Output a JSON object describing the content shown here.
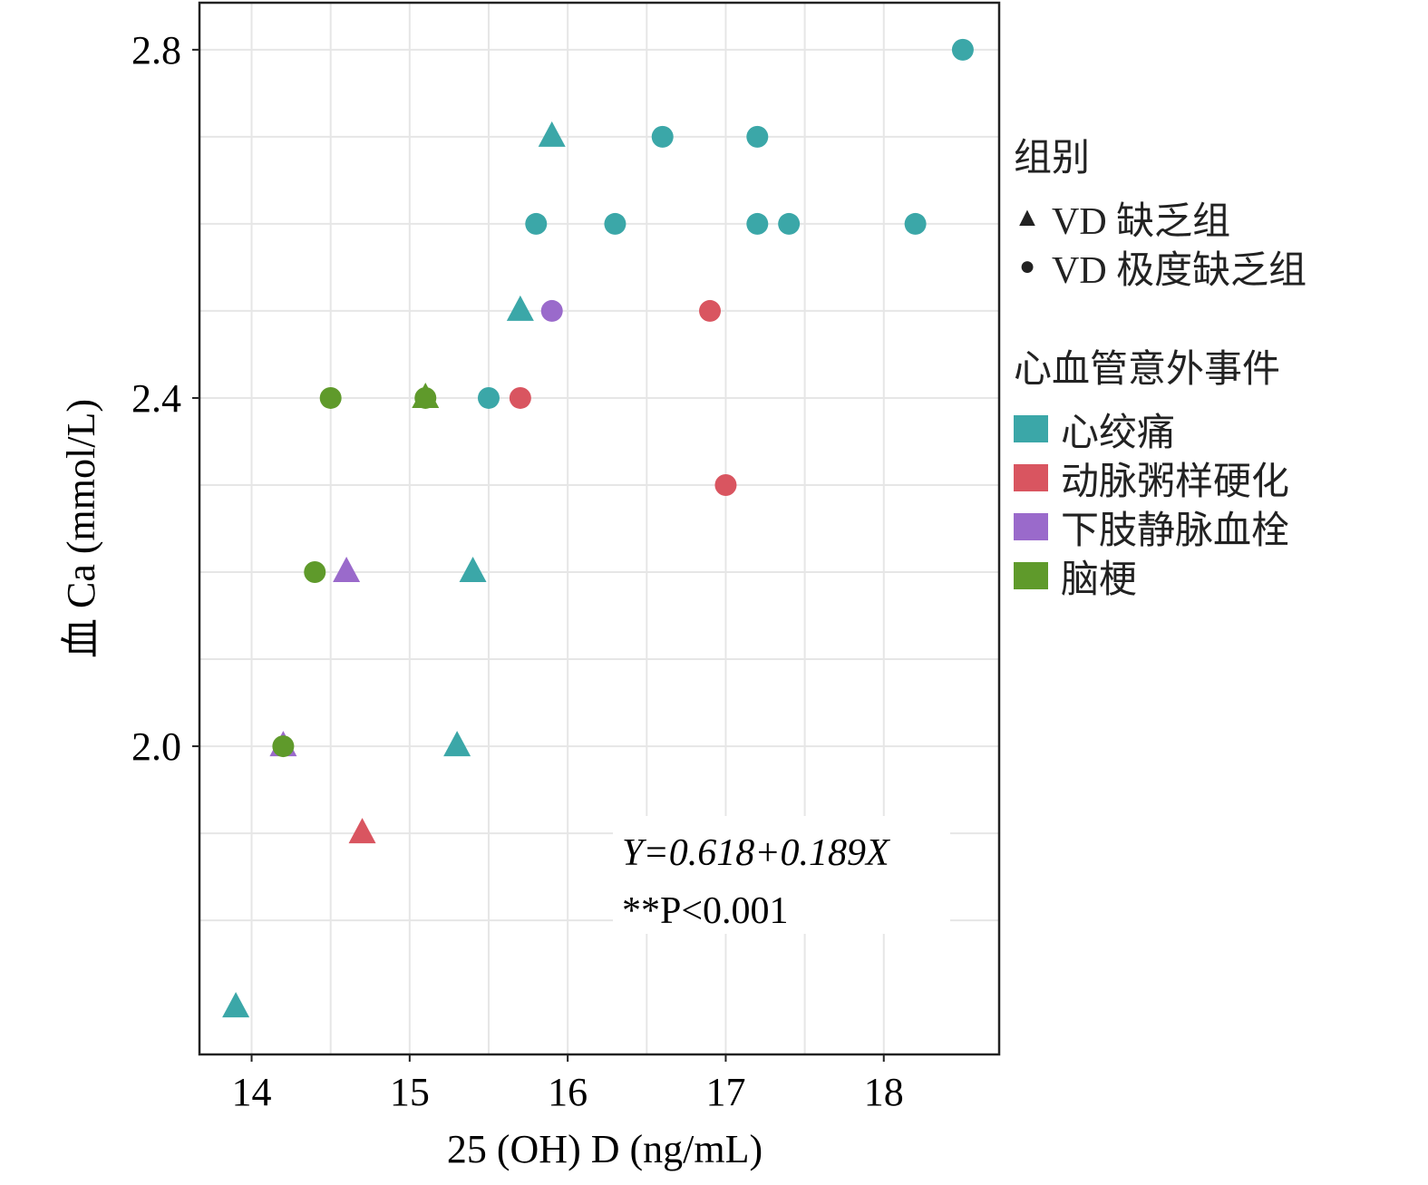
{
  "chart_data": {
    "type": "scatter",
    "xlabel": "25 (OH) D (ng/mL)",
    "ylabel": "血 Ca (mmol/L)",
    "xlim": [
      13.67,
      18.73
    ],
    "ylim": [
      1.646,
      2.854
    ],
    "xticks": [
      "14",
      "15",
      "16",
      "17",
      "18"
    ],
    "xtick_values": [
      14,
      15,
      16,
      17,
      18
    ],
    "yticks": [
      "2.0",
      "2.4",
      "2.8"
    ],
    "ytick_values": [
      2.0,
      2.4,
      2.8
    ],
    "grid_x": [
      14,
      14.5,
      15,
      15.5,
      16,
      16.5,
      17,
      17.5,
      18
    ],
    "grid_y": [
      1.8,
      1.9,
      2.0,
      2.1,
      2.2,
      2.3,
      2.4,
      2.5,
      2.6,
      2.7,
      2.8
    ],
    "grid": true,
    "annotation": {
      "equation": "Y=0.618+0.189X",
      "pvalue": "**P<0.001"
    },
    "legend": {
      "placement": "right-outside",
      "shape_title": "组别",
      "shapes": [
        {
          "key": "triangle",
          "label": "VD 缺乏组"
        },
        {
          "key": "circle",
          "label": "VD 极度缺乏组"
        }
      ],
      "color_title": "心血管意外事件",
      "colors": [
        {
          "key": "angina",
          "label": "心绞痛",
          "color": "#3ba7a8"
        },
        {
          "key": "athero",
          "label": "动脉粥样硬化",
          "color": "#d95560"
        },
        {
          "key": "dvt",
          "label": "下肢静脉血栓",
          "color": "#9a6acb"
        },
        {
          "key": "stroke",
          "label": "脑梗",
          "color": "#5f9a2b"
        }
      ]
    },
    "points": [
      {
        "x": 18.5,
        "y": 2.8,
        "shape": "circle",
        "group": "angina"
      },
      {
        "x": 15.9,
        "y": 2.7,
        "shape": "triangle",
        "group": "angina"
      },
      {
        "x": 16.6,
        "y": 2.7,
        "shape": "circle",
        "group": "angina"
      },
      {
        "x": 17.2,
        "y": 2.7,
        "shape": "circle",
        "group": "angina"
      },
      {
        "x": 15.8,
        "y": 2.6,
        "shape": "circle",
        "group": "angina"
      },
      {
        "x": 16.3,
        "y": 2.6,
        "shape": "circle",
        "group": "angina"
      },
      {
        "x": 17.2,
        "y": 2.6,
        "shape": "circle",
        "group": "angina"
      },
      {
        "x": 17.4,
        "y": 2.6,
        "shape": "circle",
        "group": "angina"
      },
      {
        "x": 18.2,
        "y": 2.6,
        "shape": "circle",
        "group": "angina"
      },
      {
        "x": 15.7,
        "y": 2.5,
        "shape": "triangle",
        "group": "angina"
      },
      {
        "x": 15.9,
        "y": 2.5,
        "shape": "circle",
        "group": "dvt"
      },
      {
        "x": 16.9,
        "y": 2.5,
        "shape": "circle",
        "group": "athero"
      },
      {
        "x": 14.5,
        "y": 2.4,
        "shape": "circle",
        "group": "stroke"
      },
      {
        "x": 15.1,
        "y": 2.4,
        "shape": "triangle",
        "group": "stroke"
      },
      {
        "x": 15.1,
        "y": 2.4,
        "shape": "circle",
        "group": "stroke"
      },
      {
        "x": 15.5,
        "y": 2.4,
        "shape": "circle",
        "group": "angina"
      },
      {
        "x": 15.7,
        "y": 2.4,
        "shape": "circle",
        "group": "athero"
      },
      {
        "x": 17.0,
        "y": 2.3,
        "shape": "circle",
        "group": "athero"
      },
      {
        "x": 14.4,
        "y": 2.2,
        "shape": "circle",
        "group": "stroke"
      },
      {
        "x": 14.6,
        "y": 2.2,
        "shape": "triangle",
        "group": "dvt"
      },
      {
        "x": 15.4,
        "y": 2.2,
        "shape": "triangle",
        "group": "angina"
      },
      {
        "x": 14.2,
        "y": 2.0,
        "shape": "triangle",
        "group": "dvt"
      },
      {
        "x": 14.2,
        "y": 2.0,
        "shape": "circle",
        "group": "stroke"
      },
      {
        "x": 15.3,
        "y": 2.0,
        "shape": "triangle",
        "group": "angina"
      },
      {
        "x": 14.7,
        "y": 1.9,
        "shape": "triangle",
        "group": "athero"
      },
      {
        "x": 13.9,
        "y": 1.7,
        "shape": "triangle",
        "group": "angina"
      }
    ]
  }
}
